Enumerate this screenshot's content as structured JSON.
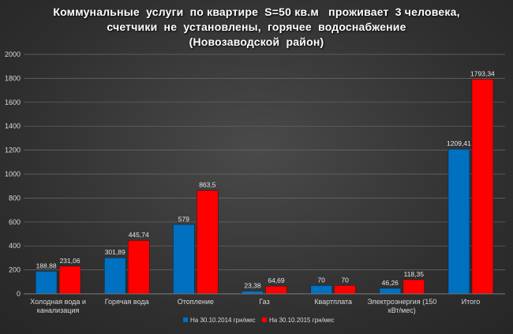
{
  "chart_data": {
    "type": "bar",
    "title": [
      "Коммунальные  услуги  по квартире  S=50 кв.м   проживает  3 человека,",
      "счетчики  не  установлены,  горячее  водоснабжение",
      "(Новозаводской  район)"
    ],
    "categories": [
      [
        "Холодная вода и",
        "канализация"
      ],
      [
        "Горячая вода"
      ],
      [
        "Отопление"
      ],
      [
        "Газ"
      ],
      [
        "Квартплата"
      ],
      [
        "Электроэнергия (150",
        "кВт/мес)"
      ],
      [
        "Итого"
      ]
    ],
    "series": [
      {
        "name": "На 30.10.2014 грн/мес",
        "color": "#0070c0",
        "values": [
          188.88,
          301.89,
          579,
          23.38,
          70,
          46.26,
          1209.41
        ],
        "labels": [
          "188,88",
          "301,89",
          "579",
          "23,38",
          "70",
          "46,26",
          "1209,41"
        ]
      },
      {
        "name": "На 30.10.2015 грн/мес",
        "color": "#ff0000",
        "values": [
          231.06,
          445.74,
          863.5,
          64.69,
          70,
          118.35,
          1793.34
        ],
        "labels": [
          "231,06",
          "445,74",
          "863,5",
          "64,69",
          "70",
          "118,35",
          "1793,34"
        ]
      }
    ],
    "yticks": [
      "0",
      "200",
      "400",
      "600",
      "800",
      "1000",
      "1200",
      "1400",
      "1600",
      "1800",
      "2000"
    ],
    "ylim": [
      0,
      2000
    ],
    "grid": true,
    "legend": "bottom"
  }
}
